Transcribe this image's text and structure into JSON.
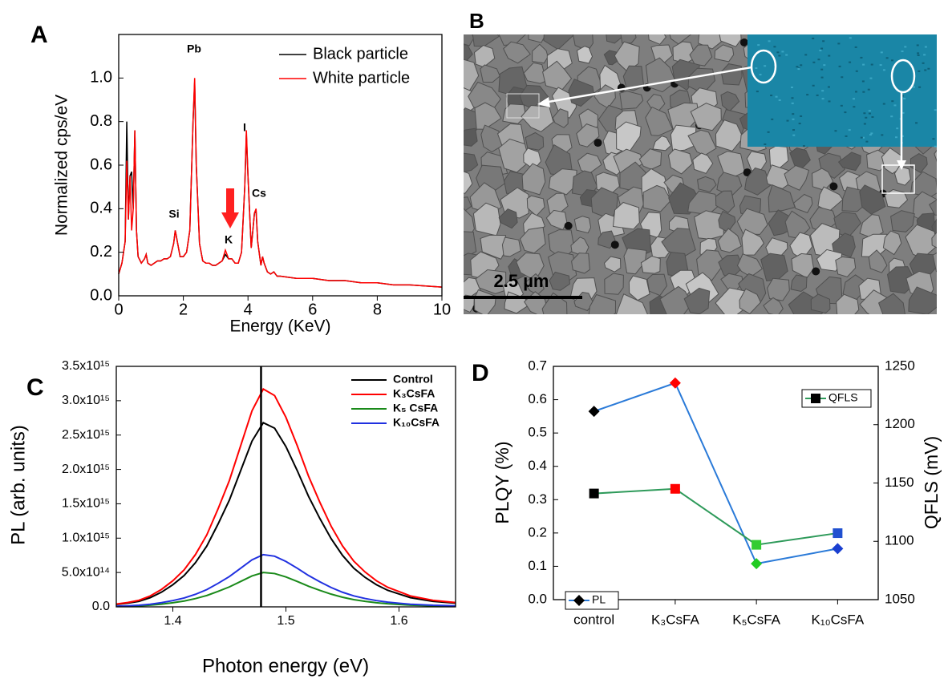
{
  "chart_data": [
    {
      "panel": "A",
      "type": "line",
      "xlabel": "Energy (KeV)",
      "ylabel": "Normalized cps/eV",
      "xlim": [
        0,
        10
      ],
      "ylim": [
        0,
        1.2
      ],
      "xticks": [
        0,
        2,
        4,
        6,
        8,
        10
      ],
      "yticks": [
        {
          "value": 0,
          "label": "0.0"
        },
        0.2,
        0.4,
        0.6,
        0.8,
        {
          "value": 1,
          "label": "1.0"
        }
      ],
      "legend": "upper right",
      "annotations": [
        "Si",
        "Pb",
        "K",
        "I",
        "Cs"
      ],
      "x": [
        0,
        0.1,
        0.2,
        0.25,
        0.3,
        0.35,
        0.4,
        0.45,
        0.5,
        0.55,
        0.6,
        0.7,
        0.8,
        0.85,
        0.9,
        1.0,
        1.1,
        1.2,
        1.3,
        1.4,
        1.5,
        1.6,
        1.7,
        1.75,
        1.8,
        1.9,
        2.0,
        2.1,
        2.2,
        2.3,
        2.35,
        2.4,
        2.5,
        2.6,
        2.7,
        2.8,
        2.9,
        3.0,
        3.1,
        3.2,
        3.3,
        3.4,
        3.5,
        3.6,
        3.7,
        3.8,
        3.9,
        3.95,
        4.0,
        4.1,
        4.15,
        4.2,
        4.25,
        4.3,
        4.4,
        4.45,
        4.5,
        4.6,
        4.7,
        4.8,
        4.9,
        5.0,
        5.5,
        6.0,
        6.5,
        7.0,
        7.5,
        8.0,
        8.5,
        9.0,
        9.5,
        10.0
      ],
      "series": [
        {
          "name": "Black particle",
          "color": "#000000",
          "values": [
            0.1,
            0.15,
            0.25,
            0.8,
            0.35,
            0.55,
            0.57,
            0.4,
            0.76,
            0.3,
            0.18,
            0.15,
            0.17,
            0.19,
            0.15,
            0.14,
            0.15,
            0.16,
            0.16,
            0.17,
            0.17,
            0.18,
            0.24,
            0.3,
            0.26,
            0.18,
            0.18,
            0.2,
            0.3,
            0.8,
            0.98,
            0.6,
            0.24,
            0.16,
            0.15,
            0.15,
            0.14,
            0.14,
            0.15,
            0.16,
            0.19,
            0.17,
            0.17,
            0.15,
            0.15,
            0.2,
            0.5,
            0.74,
            0.55,
            0.22,
            0.3,
            0.38,
            0.39,
            0.25,
            0.14,
            0.18,
            0.15,
            0.11,
            0.1,
            0.11,
            0.09,
            0.09,
            0.08,
            0.08,
            0.07,
            0.07,
            0.06,
            0.06,
            0.05,
            0.05,
            0.045,
            0.04
          ]
        },
        {
          "name": "White particle",
          "color": "#ff0000",
          "values": [
            0.1,
            0.15,
            0.25,
            0.62,
            0.35,
            0.55,
            0.3,
            0.4,
            0.76,
            0.3,
            0.18,
            0.15,
            0.17,
            0.19,
            0.15,
            0.14,
            0.15,
            0.16,
            0.16,
            0.17,
            0.17,
            0.18,
            0.24,
            0.3,
            0.26,
            0.18,
            0.18,
            0.2,
            0.3,
            0.8,
            1.0,
            0.6,
            0.24,
            0.16,
            0.15,
            0.15,
            0.14,
            0.14,
            0.15,
            0.16,
            0.21,
            0.17,
            0.17,
            0.15,
            0.15,
            0.2,
            0.5,
            0.76,
            0.55,
            0.22,
            0.3,
            0.38,
            0.4,
            0.25,
            0.14,
            0.18,
            0.15,
            0.11,
            0.1,
            0.11,
            0.09,
            0.09,
            0.08,
            0.08,
            0.07,
            0.07,
            0.06,
            0.06,
            0.05,
            0.05,
            0.045,
            0.04
          ]
        }
      ]
    },
    {
      "panel": "B",
      "type": "image",
      "scale_bar": "2.5 µm"
    },
    {
      "panel": "C",
      "type": "line",
      "xlabel": "Photon energy (eV)",
      "ylabel": "PL (arb. units)",
      "xlim": [
        1.35,
        1.65
      ],
      "ylim": [
        0,
        3500000000000000.0
      ],
      "xticks": [
        1.4,
        1.5,
        1.6
      ],
      "yticks": [
        {
          "value": 0,
          "label": "0.0"
        },
        {
          "value": 500000000000000.0,
          "label": "5.0x10¹⁴"
        },
        {
          "value": 1000000000000000.0,
          "label": "1.0x10¹⁵"
        },
        {
          "value": 1500000000000000.0,
          "label": "1.5x10¹⁵"
        },
        {
          "value": 2000000000000000.0,
          "label": "2.0x10¹⁵"
        },
        {
          "value": 2500000000000000.0,
          "label": "2.5x10¹⁵"
        },
        {
          "value": 3000000000000000.0,
          "label": "3.0x10¹⁵"
        },
        {
          "value": 3500000000000000.0,
          "label": "3.5x10¹⁵"
        }
      ],
      "vline": 1.478,
      "legend": "upper right",
      "x": [
        1.35,
        1.36,
        1.37,
        1.38,
        1.39,
        1.4,
        1.41,
        1.42,
        1.43,
        1.44,
        1.45,
        1.46,
        1.47,
        1.48,
        1.49,
        1.5,
        1.51,
        1.52,
        1.53,
        1.54,
        1.55,
        1.56,
        1.57,
        1.58,
        1.59,
        1.6,
        1.61,
        1.62,
        1.63,
        1.64,
        1.65
      ],
      "series": [
        {
          "name": "Control",
          "color": "#000000",
          "values": [
            35000000000000.0,
            54000000000000.0,
            80000000000000.0,
            134000000000000.0,
            214000000000000.0,
            322000000000000.0,
            456000000000000.0,
            643000000000000.0,
            884000000000000.0,
            1206000000000000.0,
            1554000000000000.0,
            1983000000000000.0,
            2412000000000000.0,
            2680000000000000.0,
            2600000000000000.0,
            2332000000000000.0,
            1983000000000000.0,
            1608000000000000.0,
            1286000000000000.0,
            992000000000000.0,
            750000000000000.0,
            563000000000000.0,
            429000000000000.0,
            322000000000000.0,
            241000000000000.0,
            188000000000000.0,
            134000000000000.0,
            107000000000000.0,
            80000000000000.0,
            67000000000000.0,
            54000000000000.0
          ]
        },
        {
          "name": "K₃CsFA",
          "color": "#ff0000",
          "values": [
            41000000000000.0,
            63000000000000.0,
            95000000000000.0,
            159000000000000.0,
            254000000000000.0,
            380000000000000.0,
            539000000000000.0,
            761000000000000.0,
            1046000000000000.0,
            1427000000000000.0,
            1839000000000000.0,
            2346000000000000.0,
            2853000000000000.0,
            3170000000000000.0,
            3075000000000000.0,
            2758000000000000.0,
            2346000000000000.0,
            1902000000000000.0,
            1522000000000000.0,
            1173000000000000.0,
            888000000000000.0,
            666000000000000.0,
            507000000000000.0,
            380000000000000.0,
            285000000000000.0,
            222000000000000.0,
            159000000000000.0,
            127000000000000.0,
            95000000000000.0,
            79000000000000.0,
            63000000000000.0
          ]
        },
        {
          "name": "K₅ CsFA",
          "color": "#1a8a1a",
          "values": [
            6500000000000.0,
            10000000000000.0,
            15000000000000.0,
            25000000000000.0,
            40000000000000.0,
            60000000000000.0,
            85000000000000.0,
            120000000000000.0,
            165000000000000.0,
            225000000000000.0,
            290000000000000.0,
            370000000000000.0,
            450000000000000.0,
            500000000000000.0,
            485000000000000.0,
            435000000000000.0,
            370000000000000.0,
            300000000000000.0,
            240000000000000.0,
            185000000000000.0,
            140000000000000.0,
            105000000000000.0,
            80000000000000.0,
            60000000000000.0,
            45000000000000.0,
            35000000000000.0,
            25000000000000.0,
            20000000000000.0,
            15000000000000.0,
            12500000000000.0,
            10000000000000.0
          ]
        },
        {
          "name": "K₁₀CsFA",
          "color": "#2030e0",
          "values": [
            9900000000000.0,
            15200000000000.0,
            22800000000000.0,
            38000000000000.0,
            60800000000000.0,
            91200000000000.0,
            129200000000000.0,
            182400000000000.0,
            250800000000000.0,
            342000000000000.0,
            440800000000000.0,
            562400000000000.0,
            684000000000000.0,
            760000000000000.0,
            737200000000000.0,
            661200000000000.0,
            562400000000000.0,
            456000000000000.0,
            364800000000000.0,
            281200000000000.0,
            212800000000000.0,
            159600000000000.0,
            121600000000000.0,
            91200000000000.0,
            68400000000000.0,
            53200000000000.0,
            38000000000000.0,
            30400000000000.0,
            22800000000000.0,
            19000000000000.0,
            15200000000000.0
          ]
        }
      ]
    },
    {
      "panel": "D",
      "type": "line",
      "ylabel": "PLQY (%)",
      "y2label": "QFLS (mV)",
      "categories": [
        "control",
        "K₃CsFA",
        "K₅CsFA",
        "K₁₀CsFA"
      ],
      "ylim": [
        0,
        0.7
      ],
      "yticks": [
        {
          "value": 0,
          "label": "0.0"
        },
        0.1,
        0.2,
        0.3,
        0.4,
        0.5,
        0.6,
        0.7
      ],
      "y2lim": [
        1050,
        1250
      ],
      "y2ticks": [
        1050,
        1100,
        1150,
        1200,
        1250
      ],
      "series": [
        {
          "name": "PL",
          "color": "#2a7ad8",
          "marker": "diamond",
          "legend": "lower left",
          "values": [
            0.565,
            0.65,
            0.108,
            0.153
          ],
          "marker_colors": [
            "#000000",
            "#ff0000",
            "#22cc22",
            "#1a3fd0"
          ]
        },
        {
          "name": "QFLS",
          "color": "#2e9a5a",
          "marker": "square",
          "legend": "upper right",
          "axis": "y2",
          "values": [
            1141,
            1145,
            1097,
            1107
          ],
          "marker_colors": [
            "#000000",
            "#ff0000",
            "#33cc33",
            "#2050d0"
          ]
        }
      ]
    }
  ]
}
